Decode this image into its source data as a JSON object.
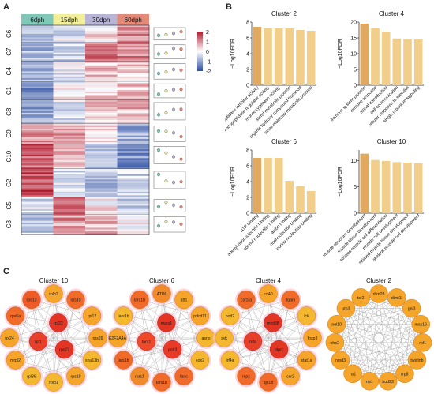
{
  "panel_letters": [
    "A",
    "B",
    "C"
  ],
  "heatmap": {
    "stages": [
      {
        "label": "6dph",
        "color": "#7fc8b8"
      },
      {
        "label": "15dph",
        "color": "#f2ef9a"
      },
      {
        "label": "30dph",
        "color": "#b7b4d6"
      },
      {
        "label": "60dph",
        "color": "#e38a78"
      }
    ],
    "clusters": [
      "C6",
      "C7",
      "C4",
      "C1",
      "C8",
      "C9",
      "C10",
      "C2",
      "C5",
      "C3"
    ],
    "cluster_weights": [
      1.1,
      1.2,
      1.3,
      1.2,
      1.5,
      1.3,
      1.6,
      1.8,
      1.1,
      1.3
    ],
    "cluster_profiles": [
      [
        -0.6,
        -0.3,
        0.2,
        0.9
      ],
      [
        -0.8,
        -0.5,
        1.2,
        1.0
      ],
      [
        -0.7,
        -0.2,
        0.6,
        0.4
      ],
      [
        -1.2,
        0.0,
        0.4,
        0.5
      ],
      [
        -1.0,
        -0.4,
        0.5,
        0.6
      ],
      [
        0.9,
        0.8,
        0.3,
        -0.9
      ],
      [
        1.4,
        0.6,
        -0.5,
        -1.2
      ],
      [
        1.6,
        -0.3,
        -0.7,
        -0.5
      ],
      [
        -0.4,
        1.3,
        0.2,
        -0.5
      ],
      [
        -0.5,
        0.9,
        0.7,
        0.1
      ]
    ],
    "legend_ticks": [
      "2",
      "1",
      "0",
      "-1",
      "-2"
    ],
    "legend_colors": {
      "high": "#b2182b",
      "mid": "#ffffff",
      "low": "#2c4ea3"
    }
  },
  "chart_data": [
    {
      "type": "bar",
      "title": "Cluster 2",
      "ylabel": "−Log10FDR",
      "ylim": [
        0,
        8
      ],
      "yticks": [
        0,
        2,
        4,
        6,
        8
      ],
      "categories": [
        "endopeptidase inhibitor activity",
        "endopeptidase regulator activity",
        "monooxygenase activity",
        "sterol metabolic process",
        "organic hydroxy compound transport",
        "small molecule metabolic process"
      ],
      "values": [
        7.4,
        7.2,
        7.2,
        7.2,
        7.0,
        6.9
      ]
    },
    {
      "type": "bar",
      "title": "Cluster 4",
      "ylabel": "−Log10FDR",
      "ylim": [
        0,
        20
      ],
      "yticks": [
        0,
        5,
        10,
        15,
        20
      ],
      "categories": [
        "immune system process",
        "immune response",
        "signal transduction",
        "cell communication",
        "cellular response to stimulus",
        "single organism signaling"
      ],
      "values": [
        19.5,
        18.0,
        17.0,
        14.8,
        14.6,
        14.5
      ]
    },
    {
      "type": "bar",
      "title": "Cluster 6",
      "ylabel": "−Log10FDR",
      "ylim": [
        0,
        8
      ],
      "yticks": [
        0,
        2,
        4,
        6,
        8
      ],
      "categories": [
        "ATP binding",
        "adenyl ribonucleotide binding",
        "adenyl nucleotide binding",
        "anion binding",
        "ribonucleotide binding",
        "purine nucleotide binding"
      ],
      "values": [
        7.0,
        7.0,
        7.0,
        4.1,
        3.4,
        2.8
      ]
    },
    {
      "type": "bar",
      "title": "Cluster 10",
      "ylabel": "−Log10FDR",
      "ylim": [
        0,
        12
      ],
      "yticks": [
        0,
        5,
        10
      ],
      "categories": [
        "muscle structure development",
        "muscle tissue development",
        "striated muscle cell differentiation",
        "muscle cell development",
        "striated muscle tissue development",
        "skeletal muscle cell development"
      ],
      "values": [
        11.3,
        10.1,
        9.9,
        9.7,
        9.6,
        9.5
      ]
    }
  ],
  "bar_colors": {
    "dark": "#e1a95f",
    "light": "#f1cf8b"
  },
  "networks": [
    {
      "title": "Cluster 10",
      "outer": [
        "rplp2",
        "rps10",
        "rpl12",
        "rps26",
        "snu13b",
        "rps19",
        "rplp1",
        "rpl36",
        "mrpl2",
        "rpl24",
        "rps6a",
        "rps13"
      ],
      "outer_colors": [
        "#f4a52a",
        "#f06a2a",
        "#f4a52a",
        "#f4a52a",
        "#f4b830",
        "#f4a52a",
        "#f4b830",
        "#f4b830",
        "#f4a52a",
        "#f4a52a",
        "#f06a2a",
        "#ee5a28"
      ],
      "inner": [
        "rpl23",
        "rps27",
        "tpt1"
      ],
      "inner_colors": [
        "#e23524",
        "#e23524",
        "#e6402a"
      ]
    },
    {
      "title": "Cluster 6",
      "outer": [
        "ATP6",
        "atf1",
        "pdcd11",
        "asns",
        "sox2",
        "fanc",
        "lars1b",
        "rars1",
        "lars1b",
        "E2F2A4A",
        "lars1b",
        "lars1b"
      ],
      "outer_colors": [
        "#f08a2a",
        "#f4a52a",
        "#f4a52a",
        "#f4b830",
        "#f4b830",
        "#f06a2a",
        "#f06a2a",
        "#f08a2a",
        "#f06a2a",
        "#f4a52a",
        "#f4b830",
        "#f06a2a"
      ],
      "inner": [
        "mars1",
        "polr3",
        "tars1"
      ],
      "inner_colors": [
        "#e23524",
        "#e83a26",
        "#ee4a2a"
      ]
    },
    {
      "title": "Cluster 4",
      "outer": [
        "cd40",
        "ifgam",
        "lck",
        "foxp3",
        "stat1a",
        "ccr2",
        "spi1b",
        "mpx",
        "irf4a",
        "syk",
        "nod2",
        "csf1ra"
      ],
      "outer_colors": [
        "#f4a52a",
        "#f06a2a",
        "#f4b830",
        "#f4a52a",
        "#f4a52a",
        "#f4a52a",
        "#f06a2a",
        "#f06a2a",
        "#f4b830",
        "#f4b830",
        "#f4b830",
        "#f06a2a"
      ],
      "inner": [
        "myd88",
        "ptprc",
        "tnfa"
      ],
      "inner_colors": [
        "#e23524",
        "#e23524",
        "#e6402a"
      ]
    },
    {
      "title": "Cluster 2",
      "outer": [
        "rbm28",
        "dimt1l",
        "gnl3",
        "mak16",
        "rpf1",
        "twistnb",
        "rrp8",
        "bud23",
        "rrs1",
        "ns1",
        "nmd3",
        "nhp2",
        "nol10",
        "utp3",
        "tsr2"
      ],
      "outer_colors": [
        "#f4a52a",
        "#f4a52a",
        "#f4a52a",
        "#f4a52a",
        "#f4a52a",
        "#f4a52a",
        "#f4a52a",
        "#f4a52a",
        "#f4a52a",
        "#f4a52a",
        "#f4a52a",
        "#f4a52a",
        "#f4a52a",
        "#f4a52a",
        "#f4a52a"
      ],
      "inner": [],
      "inner_colors": []
    }
  ]
}
